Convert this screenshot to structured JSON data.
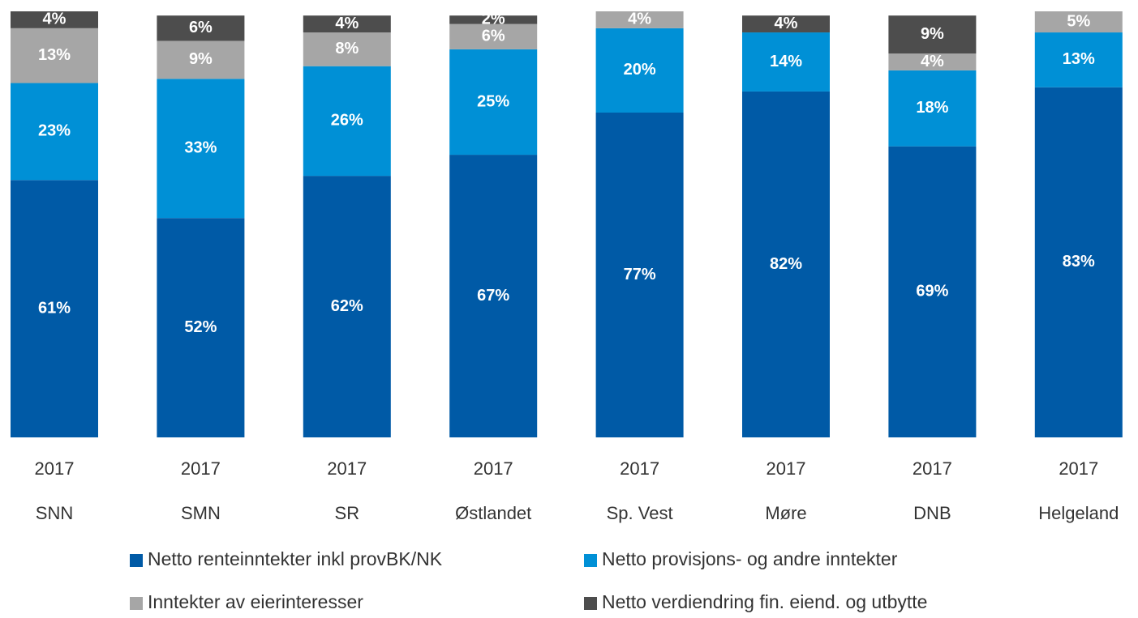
{
  "chart_data": {
    "type": "bar",
    "stacked": true,
    "categories": [
      "SNN",
      "SMN",
      "SR",
      "Østlandet",
      "Sp. Vest",
      "Møre",
      "DNB",
      "Helgeland"
    ],
    "category_years": [
      "2017",
      "2017",
      "2017",
      "2017",
      "2017",
      "2017",
      "2017",
      "2017"
    ],
    "series": [
      {
        "name": "Netto renteinntekter inkl provBK/NK",
        "color": "#005aa6",
        "values": [
          61,
          52,
          62,
          67,
          77,
          82,
          69,
          83
        ],
        "value_labels": [
          "61%",
          "52%",
          "62%",
          "67%",
          "77%",
          "82%",
          "69%",
          "83%"
        ]
      },
      {
        "name": "Netto provisjons- og andre inntekter",
        "color": "#0090d6",
        "values": [
          23,
          33,
          26,
          25,
          20,
          14,
          18,
          13
        ],
        "value_labels": [
          "23%",
          "33%",
          "26%",
          "25%",
          "20%",
          "14%",
          "18%",
          "13%"
        ]
      },
      {
        "name": "Inntekter av eierinteresser",
        "color": "#a6a6a6",
        "values": [
          13,
          9,
          8,
          6,
          4,
          null,
          4,
          5
        ],
        "value_labels": [
          "13%",
          "9%",
          "8%",
          "6%",
          "4%",
          null,
          "4%",
          "5%"
        ]
      },
      {
        "name": "Netto verdiendring fin. eiend. og utbytte",
        "color": "#4d4d4d",
        "values": [
          4,
          6,
          4,
          2,
          null,
          4,
          9,
          null
        ],
        "value_labels": [
          "4%",
          "6%",
          "4%",
          "2%",
          null,
          "4%",
          "9%",
          null
        ]
      }
    ]
  }
}
